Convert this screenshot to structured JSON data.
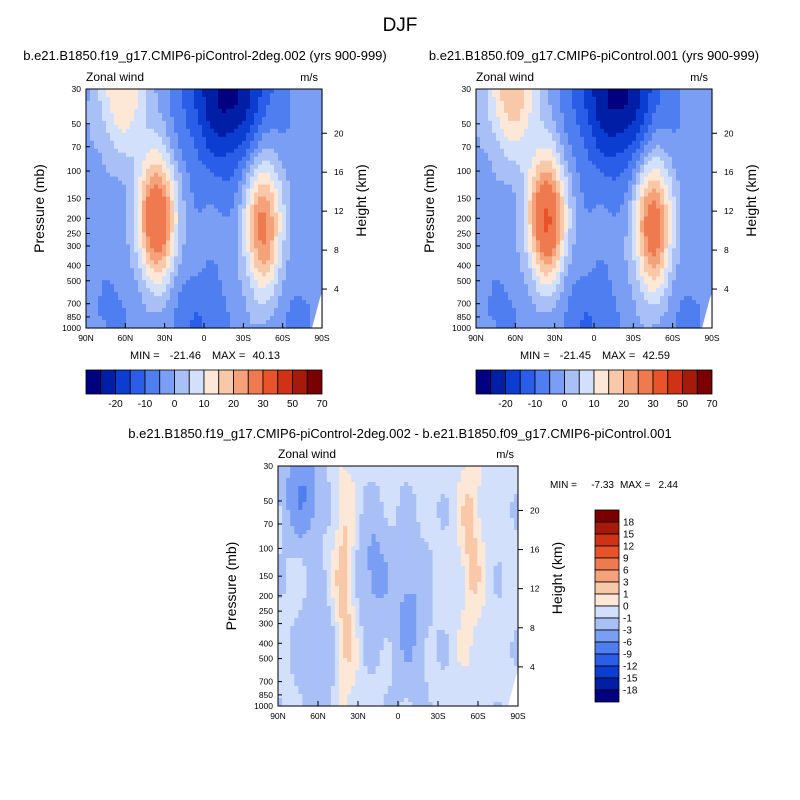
{
  "figure": {
    "season": "DJF"
  },
  "colors": {
    "main_scale": [
      "#000080",
      "#001fa6",
      "#0a3dd0",
      "#2a5ee8",
      "#4f7ef0",
      "#7a9ef4",
      "#a9c0f7",
      "#d2e0fb",
      "#fde7d6",
      "#f9c8a8",
      "#f5a27a",
      "#f07a4f",
      "#e8532a",
      "#cf3214",
      "#a51a08",
      "#7a0000"
    ],
    "diff_scale": [
      "#7a0000",
      "#a51a08",
      "#cf3214",
      "#e8532a",
      "#f07a4f",
      "#f5a27a",
      "#f9c8a8",
      "#fde7d6",
      "#d2e0fb",
      "#a9c0f7",
      "#7a9ef4",
      "#4f7ef0",
      "#2a5ee8",
      "#0a3dd0",
      "#001fa6",
      "#000080"
    ]
  },
  "chart_data": [
    {
      "type": "heatmap",
      "id": "panel1",
      "title": "b.e21.B1850.f19_g17.CMIP6-piControl-2deg.002 (yrs 900-999)",
      "variable_label": "Zonal wind",
      "units_label": "m/s",
      "ylabel": "Pressure (mb)",
      "ylabel_right": "Height (km)",
      "x_ticks": [
        "90N",
        "60N",
        "30N",
        "0",
        "30S",
        "60S",
        "90S"
      ],
      "y_ticks": [
        "30",
        "50",
        "70",
        "100",
        "150",
        "200",
        "250",
        "300",
        "400",
        "500",
        "700",
        "850",
        "1000"
      ],
      "y_ticks_right": [
        "20",
        "16",
        "12",
        "8",
        "4"
      ],
      "stats": {
        "min_label": "MIN =",
        "min": "-21.46",
        "max_label": "MAX =",
        "max": "40.13"
      },
      "features": [
        {
          "lat": 36,
          "pressure": 200,
          "value": 40.13
        },
        {
          "lat": -45,
          "pressure": 200,
          "value": 33
        },
        {
          "lat": 60,
          "pressure": 30,
          "value": 18
        },
        {
          "lat": -18,
          "pressure": 30,
          "value": -21.46
        }
      ]
    },
    {
      "type": "heatmap",
      "id": "panel2",
      "title": "b.e21.B1850.f09_g17.CMIP6-piControl.001 (yrs 900-999)",
      "variable_label": "Zonal wind",
      "units_label": "m/s",
      "ylabel": "Pressure (mb)",
      "ylabel_right": "Height (km)",
      "x_ticks": [
        "90N",
        "60N",
        "30N",
        "0",
        "30S",
        "60S",
        "90S"
      ],
      "y_ticks": [
        "30",
        "50",
        "70",
        "100",
        "150",
        "200",
        "250",
        "300",
        "400",
        "500",
        "700",
        "850",
        "1000"
      ],
      "y_ticks_right": [
        "20",
        "16",
        "12",
        "8",
        "4"
      ],
      "stats": {
        "min_label": "MIN =",
        "min": "-21.45",
        "max_label": "MAX =",
        "max": "42.59"
      },
      "features": [
        {
          "lat": 36,
          "pressure": 200,
          "value": 42.59
        },
        {
          "lat": -45,
          "pressure": 200,
          "value": 36
        },
        {
          "lat": 60,
          "pressure": 30,
          "value": 22
        },
        {
          "lat": -18,
          "pressure": 30,
          "value": -21.45
        }
      ]
    },
    {
      "type": "heatmap",
      "id": "panel3",
      "title": "b.e21.B1850.f19_g17.CMIP6-piControl-2deg.002 - b.e21.B1850.f09_g17.CMIP6-piControl.001",
      "variable_label": "Zonal wind",
      "units_label": "m/s",
      "ylabel": "Pressure (mb)",
      "ylabel_right": "Height (km)",
      "x_ticks": [
        "90N",
        "60N",
        "30N",
        "0",
        "30S",
        "60S",
        "90S"
      ],
      "y_ticks": [
        "30",
        "50",
        "70",
        "100",
        "150",
        "200",
        "250",
        "300",
        "400",
        "500",
        "700",
        "850",
        "1000"
      ],
      "y_ticks_right": [
        "20",
        "16",
        "12",
        "8",
        "4"
      ],
      "stats": {
        "min_label": "MIN =",
        "min": "-7.33",
        "max_label": "MAX =",
        "max": "2.44"
      }
    }
  ],
  "colorbar_main": {
    "labels": [
      "-20",
      "-10",
      "0",
      "10",
      "20",
      "30",
      "50",
      "70"
    ]
  },
  "colorbar_diff": {
    "labels": [
      "18",
      "15",
      "12",
      "9",
      "6",
      "3",
      "1",
      "0",
      "-1",
      "-3",
      "-6",
      "-9",
      "-12",
      "-15",
      "-18"
    ]
  }
}
